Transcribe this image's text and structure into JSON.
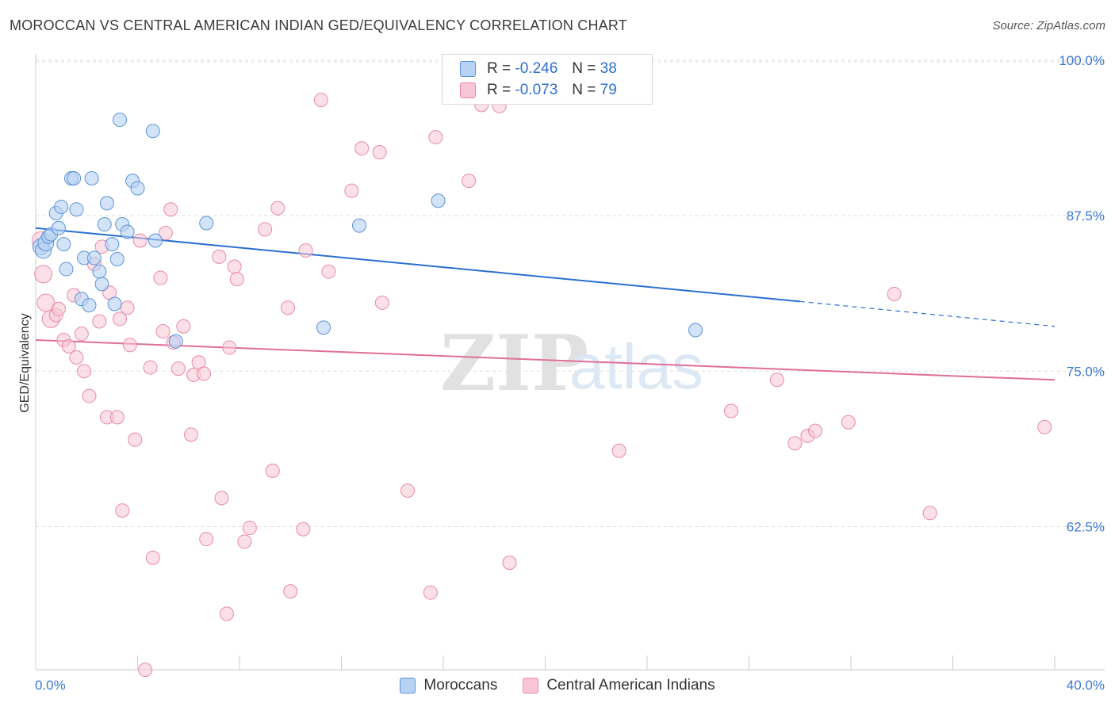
{
  "title": "MOROCCAN VS CENTRAL AMERICAN INDIAN GED/EQUIVALENCY CORRELATION CHART",
  "source": "Source: ZipAtlas.com",
  "watermark": {
    "zip": "ZIP",
    "atlas": "atlas"
  },
  "legend_top": [
    {
      "r_label": "R =",
      "r_value": "-0.246",
      "n_label": "N =",
      "n_value": "38"
    },
    {
      "r_label": "R =",
      "r_value": "-0.073",
      "n_label": "N =",
      "n_value": "79"
    }
  ],
  "legend_bottom": [
    {
      "label": "Moroccans"
    },
    {
      "label": "Central American Indians"
    }
  ],
  "colors": {
    "blue_fill": "#b8d2f3",
    "blue_stroke": "#5b93d8",
    "blue_line": "#2a6fd0",
    "pink_fill": "#f8c6d6",
    "pink_stroke": "#e88aa8",
    "pink_line": "#e06e98",
    "tick_label": "#3a78d4",
    "grid": "#dddddd",
    "axis": "#cccccc"
  },
  "chart_data": {
    "type": "scatter",
    "title": "MOROCCAN VS CENTRAL AMERICAN INDIAN GED/EQUIVALENCY CORRELATION CHART",
    "xlabel": "",
    "ylabel": "GED/Equivalency",
    "xlim": [
      0,
      40
    ],
    "ylim": [
      51,
      100.5
    ],
    "x_tick_labels": [
      "0.0%",
      "40.0%"
    ],
    "y_ticks": [
      62.5,
      75.0,
      87.5,
      100.0
    ],
    "y_tick_labels": [
      "62.5%",
      "75.0%",
      "87.5%",
      "100.0%"
    ],
    "grid": true,
    "legend_placement": "top-center",
    "series": [
      {
        "name": "Moroccans",
        "r": -0.246,
        "n": 38,
        "trend": {
          "x": [
            0,
            30
          ],
          "y": [
            86.5,
            80.6
          ],
          "dashed_to": [
            40,
            78.6
          ]
        },
        "points": [
          [
            0.2,
            85.0
          ],
          [
            0.3,
            84.7
          ],
          [
            0.4,
            85.3
          ],
          [
            0.5,
            85.8
          ],
          [
            0.6,
            86.0
          ],
          [
            0.8,
            87.7
          ],
          [
            0.9,
            86.5
          ],
          [
            1.0,
            88.2
          ],
          [
            1.1,
            85.2
          ],
          [
            1.2,
            83.2
          ],
          [
            1.4,
            90.5
          ],
          [
            1.5,
            90.5
          ],
          [
            1.6,
            88.0
          ],
          [
            1.8,
            80.8
          ],
          [
            1.9,
            84.1
          ],
          [
            2.1,
            80.3
          ],
          [
            2.2,
            90.5
          ],
          [
            2.3,
            84.1
          ],
          [
            2.5,
            83.0
          ],
          [
            2.6,
            82.0
          ],
          [
            2.7,
            86.8
          ],
          [
            2.8,
            88.5
          ],
          [
            3.0,
            85.2
          ],
          [
            3.1,
            80.4
          ],
          [
            3.2,
            84.0
          ],
          [
            3.3,
            95.2
          ],
          [
            3.4,
            86.8
          ],
          [
            3.6,
            86.2
          ],
          [
            3.8,
            90.3
          ],
          [
            4.0,
            89.7
          ],
          [
            4.6,
            94.3
          ],
          [
            4.7,
            85.5
          ],
          [
            5.5,
            77.4
          ],
          [
            6.7,
            86.9
          ],
          [
            11.3,
            78.5
          ],
          [
            12.7,
            86.7
          ],
          [
            15.8,
            88.7
          ],
          [
            25.9,
            78.3
          ]
        ]
      },
      {
        "name": "Central American Indians",
        "r": -0.073,
        "n": 79,
        "trend": {
          "x": [
            0,
            40
          ],
          "y": [
            77.5,
            74.3
          ]
        },
        "points": [
          [
            0.2,
            85.5
          ],
          [
            0.3,
            82.8
          ],
          [
            0.4,
            80.5
          ],
          [
            0.6,
            79.2
          ],
          [
            0.8,
            79.5
          ],
          [
            0.9,
            80.0
          ],
          [
            1.1,
            77.5
          ],
          [
            1.3,
            77.0
          ],
          [
            1.5,
            81.1
          ],
          [
            1.6,
            76.1
          ],
          [
            1.8,
            78.0
          ],
          [
            1.9,
            75.0
          ],
          [
            2.1,
            73.0
          ],
          [
            2.3,
            83.6
          ],
          [
            2.5,
            79.0
          ],
          [
            2.6,
            85.0
          ],
          [
            2.8,
            71.3
          ],
          [
            2.9,
            81.3
          ],
          [
            3.2,
            71.3
          ],
          [
            3.3,
            79.2
          ],
          [
            3.4,
            63.8
          ],
          [
            3.6,
            80.1
          ],
          [
            3.7,
            77.1
          ],
          [
            3.9,
            69.5
          ],
          [
            4.1,
            85.5
          ],
          [
            4.3,
            51.0
          ],
          [
            4.5,
            75.3
          ],
          [
            4.6,
            60.0
          ],
          [
            4.9,
            82.5
          ],
          [
            5.0,
            78.2
          ],
          [
            5.1,
            86.1
          ],
          [
            5.3,
            88.0
          ],
          [
            5.4,
            77.3
          ],
          [
            5.6,
            75.2
          ],
          [
            5.8,
            78.6
          ],
          [
            6.1,
            69.9
          ],
          [
            6.2,
            74.7
          ],
          [
            6.4,
            75.7
          ],
          [
            6.6,
            74.8
          ],
          [
            6.7,
            61.5
          ],
          [
            7.2,
            84.2
          ],
          [
            7.3,
            64.8
          ],
          [
            7.5,
            55.5
          ],
          [
            7.6,
            76.9
          ],
          [
            7.8,
            83.4
          ],
          [
            7.9,
            82.4
          ],
          [
            8.2,
            61.3
          ],
          [
            8.4,
            62.4
          ],
          [
            9.0,
            86.4
          ],
          [
            9.3,
            67.0
          ],
          [
            9.5,
            88.1
          ],
          [
            9.9,
            80.1
          ],
          [
            10.0,
            57.3
          ],
          [
            10.5,
            62.3
          ],
          [
            10.6,
            84.7
          ],
          [
            11.2,
            96.8
          ],
          [
            11.5,
            83.0
          ],
          [
            12.4,
            89.5
          ],
          [
            12.8,
            92.9
          ],
          [
            13.5,
            92.6
          ],
          [
            13.6,
            80.5
          ],
          [
            14.6,
            65.4
          ],
          [
            15.5,
            57.2
          ],
          [
            15.7,
            93.8
          ],
          [
            17.0,
            90.3
          ],
          [
            17.5,
            96.4
          ],
          [
            18.2,
            96.3
          ],
          [
            18.6,
            59.6
          ],
          [
            22.6,
            98.8
          ],
          [
            22.9,
            68.6
          ],
          [
            27.3,
            71.8
          ],
          [
            29.1,
            74.3
          ],
          [
            29.8,
            69.2
          ],
          [
            30.3,
            69.8
          ],
          [
            30.6,
            70.2
          ],
          [
            31.9,
            70.9
          ],
          [
            33.7,
            81.2
          ],
          [
            35.1,
            63.6
          ],
          [
            39.6,
            70.5
          ]
        ]
      }
    ]
  }
}
